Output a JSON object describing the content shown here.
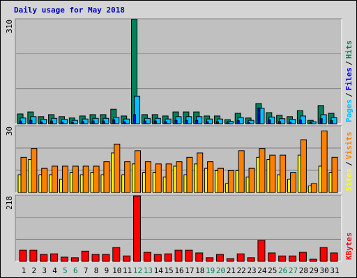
{
  "chart_data": [
    {
      "type": "bar",
      "title": "Daily usage for May 2018",
      "ylim": [
        0,
        310
      ],
      "yticks": [
        310
      ],
      "separator": "/",
      "series": [
        {
          "name": "Hits",
          "color": "#00805c",
          "values": [
            29,
            35,
            21,
            27,
            21,
            17,
            23,
            27,
            27,
            43,
            23,
            310,
            27,
            27,
            23,
            35,
            35,
            35,
            23,
            23,
            12,
            31,
            17,
            60,
            33,
            25,
            21,
            39,
            10,
            54,
            31
          ]
        },
        {
          "name": "Files",
          "color": "#0000ff",
          "values": [
            8,
            10,
            5,
            8,
            5,
            4,
            6,
            8,
            8,
            12,
            6,
            27,
            8,
            8,
            6,
            10,
            10,
            10,
            6,
            6,
            3,
            9,
            4,
            47,
            12,
            7,
            5,
            11,
            3,
            15,
            9
          ]
        },
        {
          "name": "Pages",
          "color": "#00c0ff",
          "values": [
            17,
            21,
            13,
            16,
            13,
            10,
            14,
            16,
            16,
            19,
            14,
            82,
            16,
            16,
            14,
            21,
            21,
            21,
            14,
            14,
            7,
            18,
            10,
            46,
            20,
            15,
            13,
            23,
            6,
            27,
            18
          ]
        }
      ]
    },
    {
      "type": "bar",
      "ylim": [
        0,
        30
      ],
      "yticks": [
        30
      ],
      "separator": "/",
      "series": [
        {
          "name": "Sites",
          "color": "#ffff00",
          "values": [
            8,
            15,
            8,
            8,
            6,
            9,
            8,
            9,
            8,
            18,
            8,
            13,
            9,
            9,
            7,
            12,
            8,
            13,
            11,
            10,
            4,
            10,
            7,
            16,
            15,
            8,
            6,
            17,
            3,
            12,
            9
          ]
        },
        {
          "name": "Visits",
          "color": "#ff8000",
          "values": [
            16,
            20,
            11,
            12,
            12,
            12,
            12,
            12,
            14,
            22,
            14,
            19,
            14,
            13,
            13,
            14,
            16,
            18,
            14,
            11,
            10,
            19,
            11,
            20,
            17,
            17,
            9,
            24,
            4,
            28,
            16
          ]
        }
      ]
    },
    {
      "type": "bar",
      "ylim": [
        0,
        218
      ],
      "yticks": [
        218
      ],
      "series": [
        {
          "name": "KBytes",
          "color": "#ff0000",
          "values": [
            37,
            37,
            23,
            25,
            14,
            12,
            34,
            23,
            23,
            46,
            18,
            218,
            30,
            23,
            25,
            37,
            37,
            28,
            12,
            23,
            9,
            25,
            12,
            70,
            28,
            18,
            18,
            30,
            7,
            46,
            28
          ]
        }
      ],
      "categories": [
        "1",
        "2",
        "3",
        "4",
        "5",
        "6",
        "7",
        "8",
        "9",
        "10",
        "11",
        "12",
        "13",
        "14",
        "15",
        "16",
        "17",
        "18",
        "19",
        "20",
        "21",
        "22",
        "23",
        "24",
        "25",
        "26",
        "27",
        "28",
        "29",
        "30",
        "31"
      ],
      "category_colors": [
        "#000000",
        "#000000",
        "#000000",
        "#000000",
        "#00805c",
        "#00805c",
        "#000000",
        "#000000",
        "#000000",
        "#000000",
        "#000000",
        "#00805c",
        "#00805c",
        "#000000",
        "#000000",
        "#000000",
        "#000000",
        "#000000",
        "#00805c",
        "#00805c",
        "#000000",
        "#000000",
        "#000000",
        "#000000",
        "#000000",
        "#00805c",
        "#00805c",
        "#000000",
        "#000000",
        "#000000",
        "#000000"
      ]
    }
  ]
}
